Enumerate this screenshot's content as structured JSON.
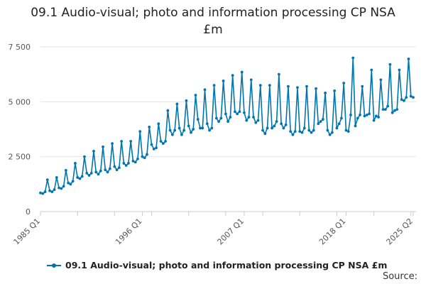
{
  "title_line1": "09.1 Audio-visual; photo and information processing CP NSA",
  "title_line2": "£m",
  "source_label": "Source:",
  "legend": {
    "label": "09.1 Audio-visual; photo and information processing CP NSA £m"
  },
  "colors": {
    "series": "#0075b0",
    "grid": "#e6e6e6",
    "axis": "#cccccc"
  },
  "chart_data": {
    "type": "line",
    "title": "09.1 Audio-visual; photo and information processing CP NSA £m",
    "xlabel": "",
    "ylabel": "",
    "x_start": "1985 Q1",
    "x_end": "2025 Q2",
    "x_tick_labels": [
      "1985 Q1",
      "1996 Q1",
      "2007 Q1",
      "2018 Q1",
      "2025 Q2"
    ],
    "y_tick_labels": [
      "0",
      "2 500",
      "5 000",
      "7 500"
    ],
    "ylim": [
      0,
      7500
    ],
    "grid": "horizontal",
    "legend_position": "bottom",
    "series": [
      {
        "name": "09.1 Audio-visual; photo and information processing CP NSA £m",
        "values": [
          850,
          820,
          900,
          1450,
          950,
          900,
          1000,
          1550,
          1080,
          1050,
          1150,
          1880,
          1300,
          1250,
          1380,
          2200,
          1550,
          1500,
          1600,
          2500,
          1750,
          1650,
          1750,
          2750,
          1800,
          1700,
          1850,
          2950,
          1900,
          1800,
          1950,
          3100,
          2050,
          1900,
          2000,
          3200,
          2200,
          2100,
          2200,
          3200,
          2300,
          2250,
          2400,
          3650,
          2500,
          2450,
          2600,
          3850,
          3050,
          2850,
          2900,
          4000,
          3200,
          3100,
          3200,
          4600,
          3700,
          3500,
          3700,
          4900,
          3800,
          3500,
          3700,
          5050,
          3900,
          3600,
          3750,
          5300,
          4200,
          3800,
          3800,
          5550,
          4000,
          3700,
          3800,
          5750,
          4250,
          4100,
          4250,
          5950,
          4450,
          4100,
          4300,
          6200,
          4550,
          4450,
          4550,
          6350,
          4500,
          4150,
          4300,
          6000,
          4300,
          4050,
          4150,
          5750,
          3700,
          3550,
          3800,
          5750,
          3800,
          3900,
          4100,
          6250,
          4000,
          3800,
          3950,
          5700,
          3650,
          3500,
          3650,
          5650,
          3650,
          3600,
          3800,
          5700,
          3700,
          3600,
          3700,
          5600,
          4000,
          4100,
          4200,
          5400,
          3700,
          3500,
          3600,
          5500,
          3800,
          4000,
          4250,
          5850,
          3700,
          3650,
          4400,
          7000,
          3900,
          4250,
          4400,
          5700,
          4350,
          4400,
          4450,
          6450,
          4150,
          4350,
          4300,
          6000,
          4650,
          4650,
          4800,
          6700,
          4500,
          4600,
          4650,
          6450,
          5100,
          5050,
          5200,
          6950,
          5250,
          5200
        ]
      }
    ]
  }
}
